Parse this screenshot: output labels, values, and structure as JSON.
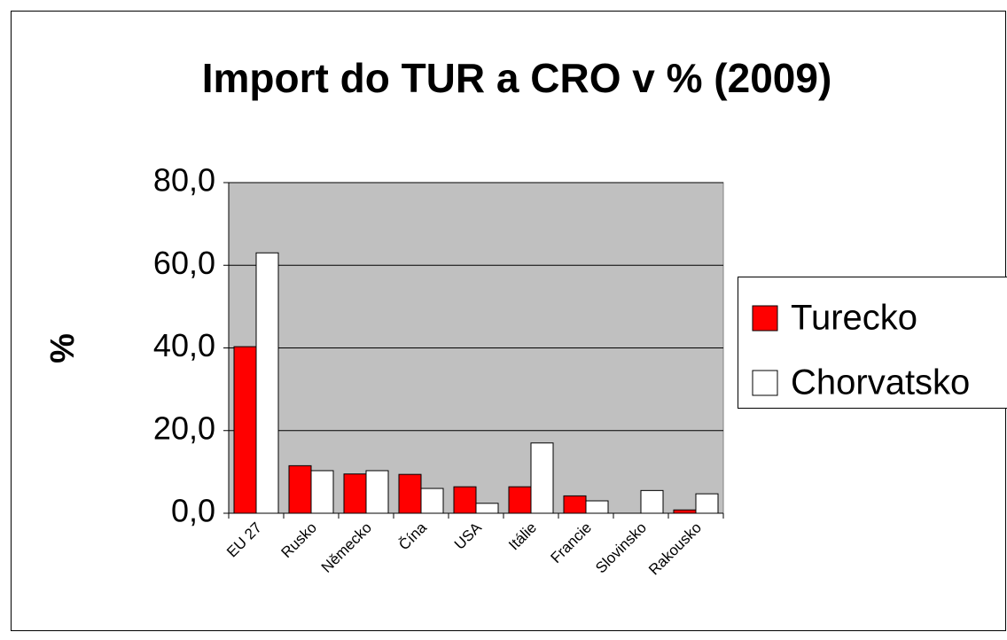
{
  "chart_data": {
    "type": "bar",
    "title": "Import do TUR a CRO v % (2009)",
    "y_label": "%",
    "categories": [
      "EU 27",
      "Rusko",
      "Německo",
      "Čína",
      "USA",
      "Itálie",
      "Francie",
      "Slovinsko",
      "Rakousko"
    ],
    "series": [
      {
        "name": "Turecko",
        "color": "#ff0000",
        "values": [
          40.3,
          11.5,
          9.5,
          9.4,
          6.4,
          6.4,
          4.2,
          null,
          0.8
        ]
      },
      {
        "name": "Chorvatsko",
        "color": "#ffffff",
        "values": [
          63.0,
          10.3,
          10.3,
          6.0,
          2.4,
          17.0,
          3.0,
          5.5,
          4.7
        ]
      }
    ],
    "ylim": [
      0,
      80
    ],
    "yticks": [
      {
        "value": 0,
        "label": "0,0"
      },
      {
        "value": 20,
        "label": "20,0"
      },
      {
        "value": 40,
        "label": "40,0"
      },
      {
        "value": 60,
        "label": "60,0"
      },
      {
        "value": 80,
        "label": "80,0"
      }
    ],
    "grid": true,
    "plot_background": "#c0c0c0",
    "legend": "right"
  }
}
